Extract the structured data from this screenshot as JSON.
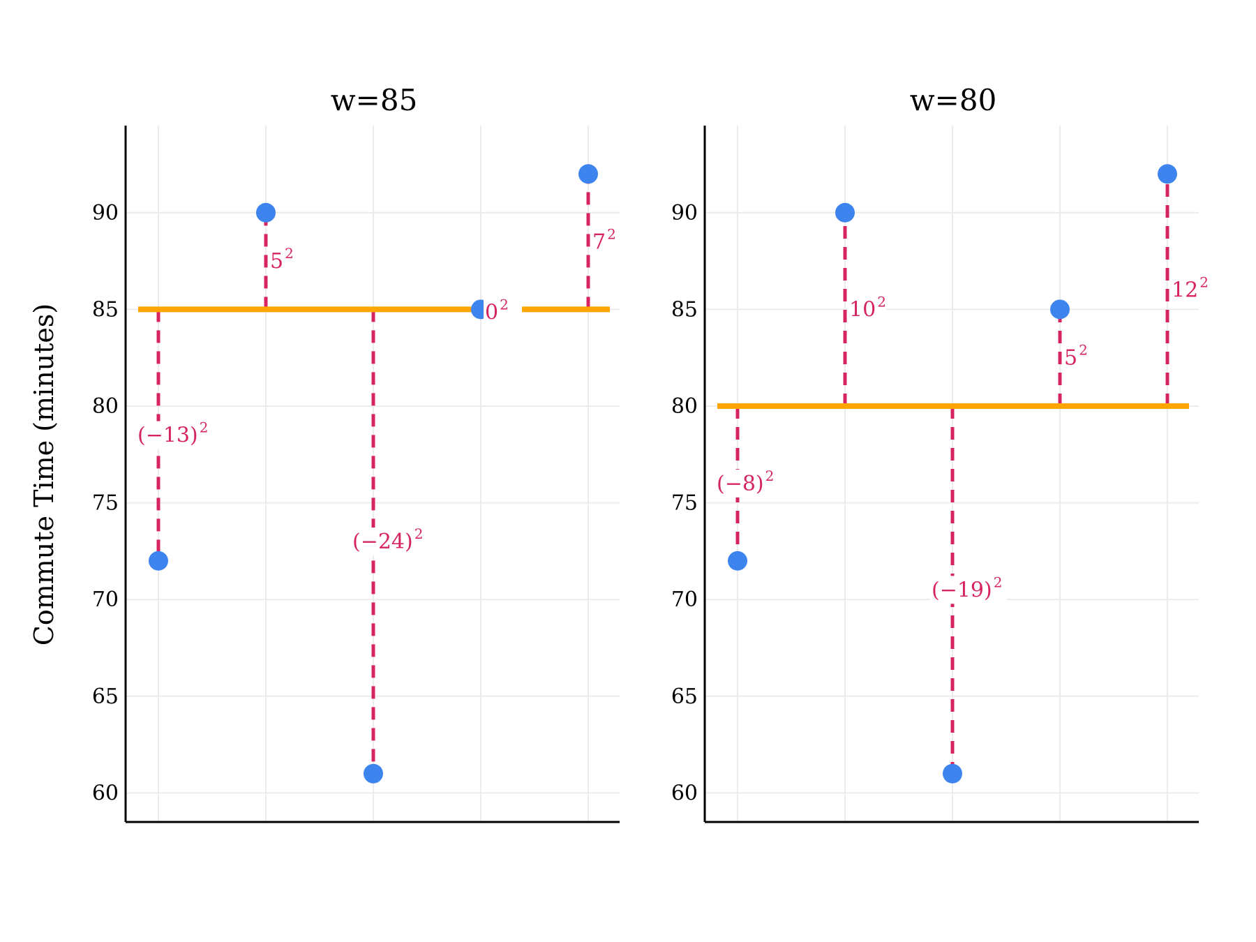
{
  "chart_data": {
    "type": "scatter",
    "ylabel": "Commute Time (minutes)",
    "ylim": [
      58.5,
      94.5
    ],
    "yticks": [
      60,
      65,
      70,
      75,
      80,
      85,
      90
    ],
    "x": [
      1,
      2,
      3,
      4,
      5
    ],
    "y": [
      72,
      90,
      61,
      85,
      92
    ],
    "grid": true,
    "colors": {
      "points": "#3e84ee",
      "fit_line": "#ffa500",
      "residual": "#d6245f"
    },
    "panels": [
      {
        "title": "w=85",
        "w": 85,
        "residual_labels": [
          "(−13)",
          "5",
          "(−24)",
          "0",
          "7"
        ]
      },
      {
        "title": "w=80",
        "w": 80,
        "residual_labels": [
          "(−8)",
          "10",
          "(−19)",
          "5",
          "12"
        ]
      }
    ]
  }
}
